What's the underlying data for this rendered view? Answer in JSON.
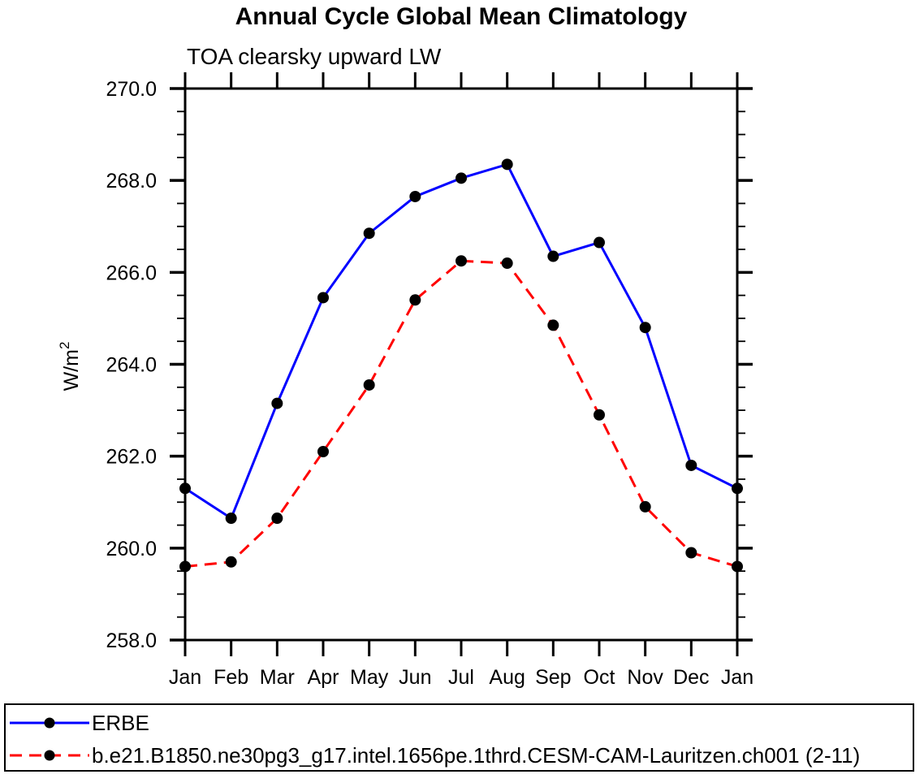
{
  "page": {
    "background": "#ffffff"
  },
  "chart_data": {
    "type": "line",
    "title": "Annual Cycle Global Mean Climatology",
    "subtitle": "TOA clearsky upward LW",
    "ylabel": "W/m²",
    "xlabel": "",
    "categories": [
      "Jan",
      "Feb",
      "Mar",
      "Apr",
      "May",
      "Jun",
      "Jul",
      "Aug",
      "Sep",
      "Oct",
      "Nov",
      "Dec",
      "Jan"
    ],
    "ylim": [
      258.0,
      270.0
    ],
    "ytick_major_step": 2.0,
    "ytick_minor_step": 0.5,
    "ytick_labels": [
      "258.0",
      "260.0",
      "262.0",
      "264.0",
      "266.0",
      "268.0",
      "270.0"
    ],
    "grid": false,
    "legend_position": "bottom-box",
    "axis_color": "#000000",
    "marker_color": "#000000",
    "series": [
      {
        "name": "ERBE",
        "color": "#0000ff",
        "line_style": "solid",
        "marker": "filled-circle",
        "values": [
          261.3,
          260.65,
          263.15,
          265.45,
          266.85,
          267.65,
          268.05,
          268.35,
          266.35,
          266.65,
          264.8,
          261.8,
          261.3
        ]
      },
      {
        "name": "b.e21.B1850.ne30pg3_g17.intel.1656pe.1thrd.CESM-CAM-Lauritzen.ch001 (2-11)",
        "color": "#ff0000",
        "line_style": "dashed",
        "marker": "filled-circle",
        "values": [
          259.6,
          259.7,
          260.65,
          262.1,
          263.55,
          265.4,
          266.25,
          266.2,
          264.85,
          262.9,
          260.9,
          259.9,
          259.6
        ]
      }
    ]
  }
}
